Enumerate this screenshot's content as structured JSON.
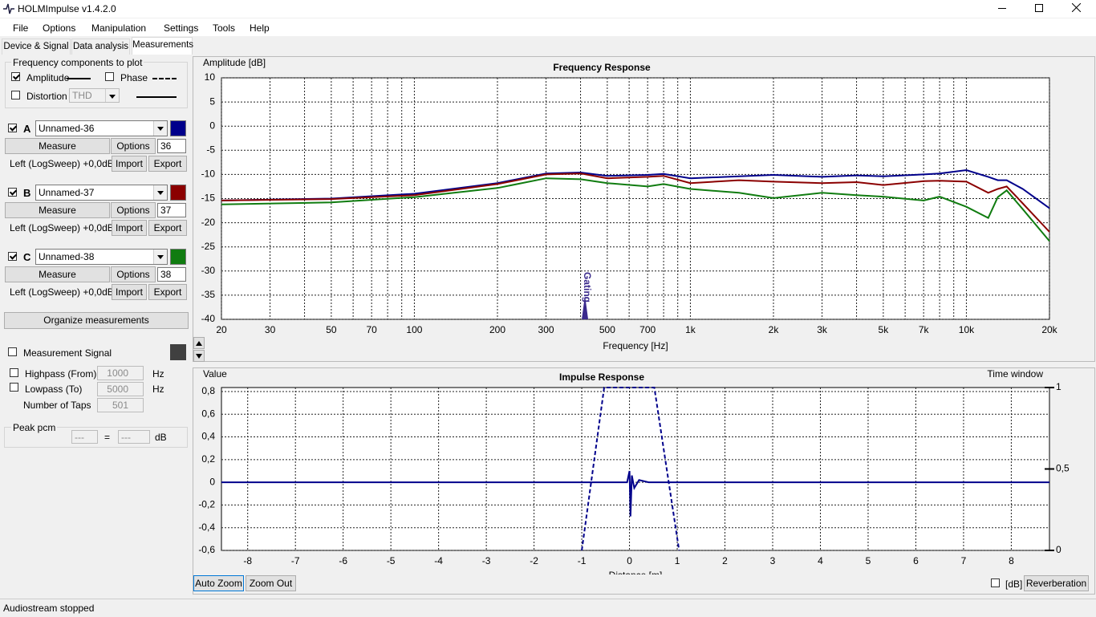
{
  "window": {
    "title": "HOLMImpulse  v1.4.2.0"
  },
  "menu": [
    "File",
    "Options",
    "Manipulation",
    "Settings",
    "Tools",
    "Help"
  ],
  "tabs": [
    "Device & Signal",
    "Data analysis",
    "Measurements"
  ],
  "components": {
    "title": "Frequency components to plot",
    "amplitude": "Amplitude",
    "phase": "Phase",
    "distortion": "Distortion",
    "distortion_type": "THD"
  },
  "measurements": [
    {
      "letter": "A",
      "name": "Unnamed-36",
      "measure": "Measure",
      "options": "Options",
      "number": "36",
      "info": "Left (LogSweep) +0,0dB",
      "import": "Import",
      "export": "Export",
      "color": "#00008b"
    },
    {
      "letter": "B",
      "name": "Unnamed-37",
      "measure": "Measure",
      "options": "Options",
      "number": "37",
      "info": "Left (LogSweep) +0,0dB",
      "import": "Import",
      "export": "Export",
      "color": "#8b0000"
    },
    {
      "letter": "C",
      "name": "Unnamed-38",
      "measure": "Measure",
      "options": "Options",
      "number": "38",
      "info": "Left (LogSweep) +0,0dB",
      "import": "Import",
      "export": "Export",
      "color": "#107c10"
    }
  ],
  "organize": "Organize measurements",
  "signal": {
    "label": "Measurement Signal",
    "highpass": "Highpass (From)",
    "highpass_value": "1000",
    "lowpass": "Lowpass (To)",
    "lowpass_value": "5000",
    "taps": "Number of Taps",
    "taps_value": "501",
    "unit": "Hz"
  },
  "peak": {
    "label": "Peak pcm",
    "left": "---",
    "eq": "=",
    "right": "---",
    "unit": "dB"
  },
  "chart_data": [
    {
      "type": "line",
      "title": "Frequency Response",
      "y_label": "Amplitude [dB]",
      "x_label": "Frequency [Hz]",
      "log_x": true,
      "xlim": [
        20,
        20000
      ],
      "xticks": [
        20,
        30,
        50,
        70,
        100,
        200,
        300,
        500,
        700,
        {
          "value": 1000,
          "label": "1k"
        },
        {
          "value": 2000,
          "label": "2k"
        },
        {
          "value": 3000,
          "label": "3k"
        },
        {
          "value": 5000,
          "label": "5k"
        },
        {
          "value": 7000,
          "label": "7k"
        },
        {
          "value": 10000,
          "label": "10k"
        },
        {
          "value": 20000,
          "label": "20k"
        }
      ],
      "xminorticks": [
        40,
        60,
        80,
        90,
        400,
        600,
        800,
        900,
        4000,
        6000,
        8000,
        9000
      ],
      "ylim": [
        -40,
        10
      ],
      "yticks": [
        -40,
        -35,
        -30,
        -25,
        -20,
        -15,
        -10,
        -5,
        0,
        5,
        10
      ],
      "grid": true,
      "annotation": {
        "text": "Gating",
        "x": 415
      },
      "x": [
        20,
        50,
        100,
        200,
        300,
        400,
        500,
        700,
        800,
        1000,
        1500,
        2000,
        3000,
        4000,
        5000,
        7000,
        8000,
        10000,
        12000,
        13000,
        14000,
        16000,
        20000
      ],
      "series": [
        {
          "color": "#00008b",
          "values": [
            -15.4,
            -15.0,
            -14.0,
            -11.8,
            -9.8,
            -9.6,
            -10.3,
            -10.1,
            -9.9,
            -10.8,
            -10.4,
            -10.1,
            -10.5,
            -10.2,
            -10.4,
            -10.0,
            -9.8,
            -9.1,
            -10.5,
            -11.2,
            -11.2,
            -13.0,
            -17.0
          ]
        },
        {
          "color": "#8b0000",
          "values": [
            -15.4,
            -15.1,
            -14.3,
            -12.0,
            -10.0,
            -9.8,
            -10.8,
            -10.5,
            -10.3,
            -11.8,
            -11.2,
            -11.5,
            -11.8,
            -11.6,
            -12.2,
            -11.4,
            -11.3,
            -11.5,
            -13.8,
            -13.0,
            -12.5,
            -16.0,
            -21.9
          ]
        },
        {
          "color": "#107c10",
          "values": [
            -16.2,
            -15.8,
            -14.7,
            -12.8,
            -10.8,
            -11.0,
            -11.8,
            -12.5,
            -12.0,
            -13.0,
            -13.8,
            -14.9,
            -13.8,
            -14.3,
            -14.6,
            -15.4,
            -14.6,
            -16.7,
            -19.0,
            -14.7,
            -13.3,
            -17.2,
            -23.8
          ]
        }
      ]
    },
    {
      "type": "line",
      "title": "Impulse Response",
      "y_label": "Value",
      "y2_label": "Time window",
      "x_label": "Distance [m]",
      "xlim": [
        -8.55,
        8.8
      ],
      "xticks": [
        -8,
        -7,
        -6,
        -5,
        -4,
        -3,
        -2,
        -1,
        0,
        1,
        2,
        3,
        4,
        5,
        6,
        7,
        8
      ],
      "ylim": [
        -0.6,
        0.835
      ],
      "yticks": [
        {
          "value": -0.6,
          "label": "-0,6"
        },
        {
          "value": -0.4,
          "label": "-0,4"
        },
        {
          "value": -0.2,
          "label": "-0,2"
        },
        0,
        {
          "value": 0.2,
          "label": "0,2"
        },
        {
          "value": 0.4,
          "label": "0,4"
        },
        {
          "value": 0.6,
          "label": "0,6"
        },
        {
          "value": 0.8,
          "label": "0,8"
        }
      ],
      "y2lim": [
        0,
        1
      ],
      "y2ticks": [
        0,
        {
          "value": 0.5,
          "label": "0,5"
        },
        1
      ],
      "grid": true,
      "series": [
        {
          "color": "#00008b",
          "x": [
            -8.55,
            -0.05,
            0,
            0.02,
            0.05,
            0.1,
            0.2,
            0.4,
            8.8
          ],
          "values": [
            0,
            0,
            0.1,
            -0.3,
            0.06,
            -0.05,
            0.02,
            0,
            0
          ]
        },
        {
          "color": "#00008b",
          "dashed": true,
          "axis": "y2",
          "x": [
            -1,
            -0.53,
            0.52,
            1.04
          ],
          "values": [
            0,
            1,
            1,
            0
          ]
        }
      ]
    }
  ],
  "buttons": {
    "auto_zoom": "Auto Zoom",
    "zoom_out": "Zoom Out",
    "db": "[dB]",
    "reverberation": "Reverberation"
  },
  "status": "Audiostream stopped"
}
